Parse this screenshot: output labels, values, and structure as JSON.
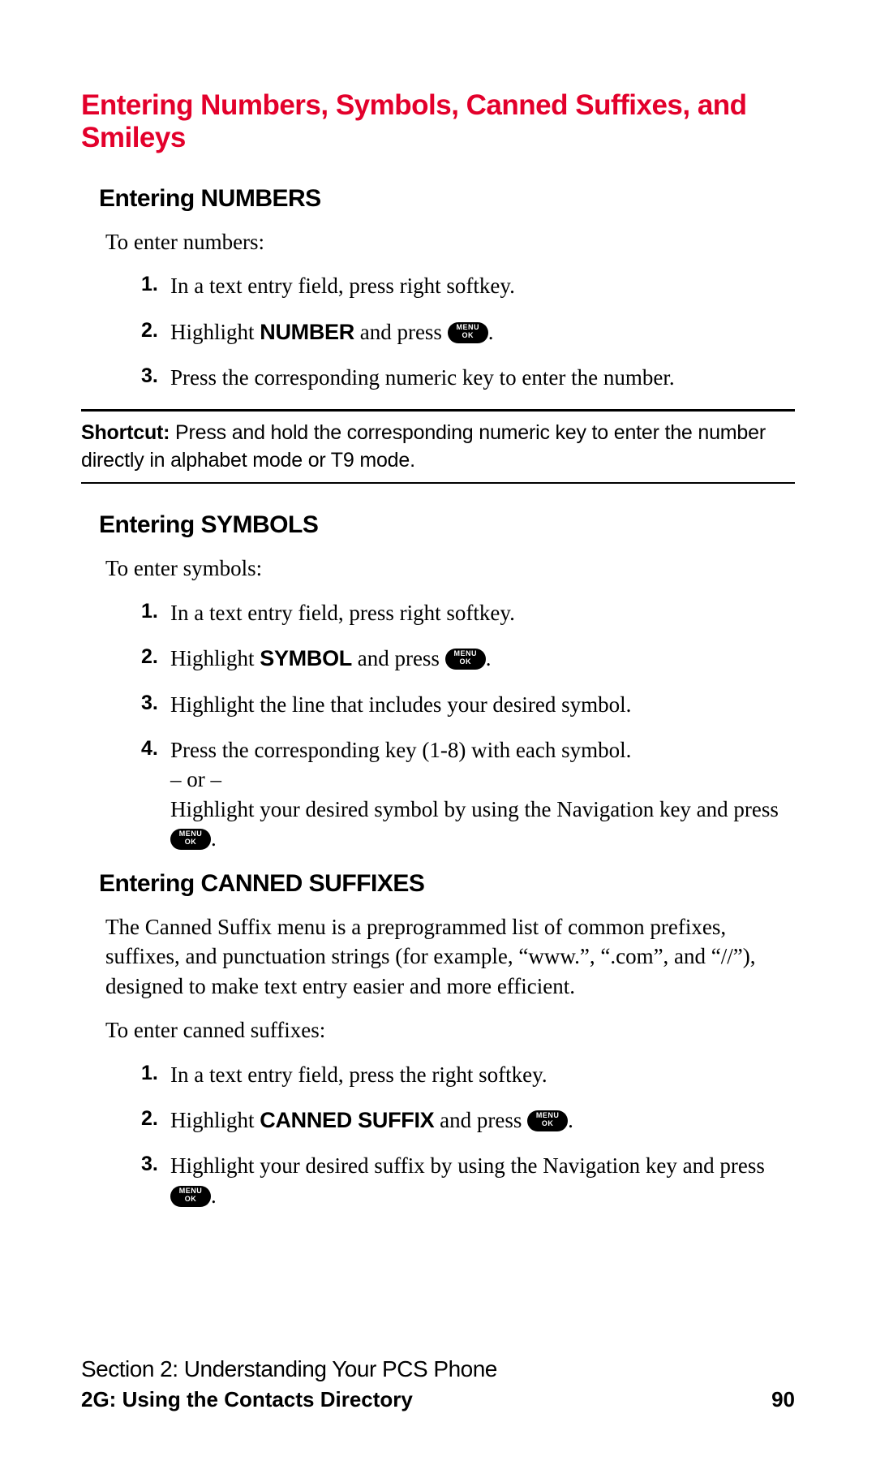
{
  "colors": {
    "title": "#e3002b",
    "text": "#000000",
    "bg": "#ffffff"
  },
  "button": {
    "line1": "MENU",
    "line2": "OK"
  },
  "title": "Entering Numbers, Symbols, Canned Suffixes, and Smileys",
  "numbers": {
    "heading": "Entering NUMBERS",
    "intro": "To enter numbers:",
    "items": {
      "n1": "1.",
      "t1": "In a text entry field, press right softkey.",
      "n2": "2.",
      "t2a": "Highlight ",
      "t2b": "NUMBER",
      "t2c": " and press ",
      "t2d": ".",
      "n3": "3.",
      "t3": "Press the corresponding numeric key to enter the number."
    }
  },
  "shortcut": {
    "label": "Shortcut:",
    "text": " Press and hold the corresponding numeric key to enter the number directly in alphabet mode or T9 mode."
  },
  "symbols": {
    "heading": "Entering SYMBOLS",
    "intro": "To enter symbols:",
    "items": {
      "n1": "1.",
      "t1": "In a text entry field, press right softkey.",
      "n2": "2.",
      "t2a": "Highlight ",
      "t2b": "SYMBOL",
      "t2c": " and press ",
      "t2d": ".",
      "n3": "3.",
      "t3": "Highlight the line that includes your desired symbol.",
      "n4": "4.",
      "t4a": "Press the corresponding key (1-8) with each symbol.",
      "t4b": "– or –",
      "t4c": "Highlight your desired symbol by using the Navigation key and press ",
      "t4d": "."
    }
  },
  "canned": {
    "heading": "Entering CANNED SUFFIXES",
    "para": "The Canned Suffix menu is a preprogrammed list of common prefixes, suffixes, and punctuation strings (for example, “www.”, “.com”, and “//”), designed to make text entry easier and more efficient.",
    "intro": "To enter canned suffixes:",
    "items": {
      "n1": "1.",
      "t1": "In a text entry field, press the right softkey.",
      "n2": "2.",
      "t2a": "Highlight ",
      "t2b": "CANNED SUFFIX",
      "t2c": " and press ",
      "t2d": ".",
      "n3": "3.",
      "t3a": "Highlight your desired suffix by using the Navigation key and press ",
      "t3b": "."
    }
  },
  "footer": {
    "line1": "Section 2: Understanding Your PCS Phone",
    "line2": "2G: Using the Contacts Directory",
    "page": "90"
  }
}
